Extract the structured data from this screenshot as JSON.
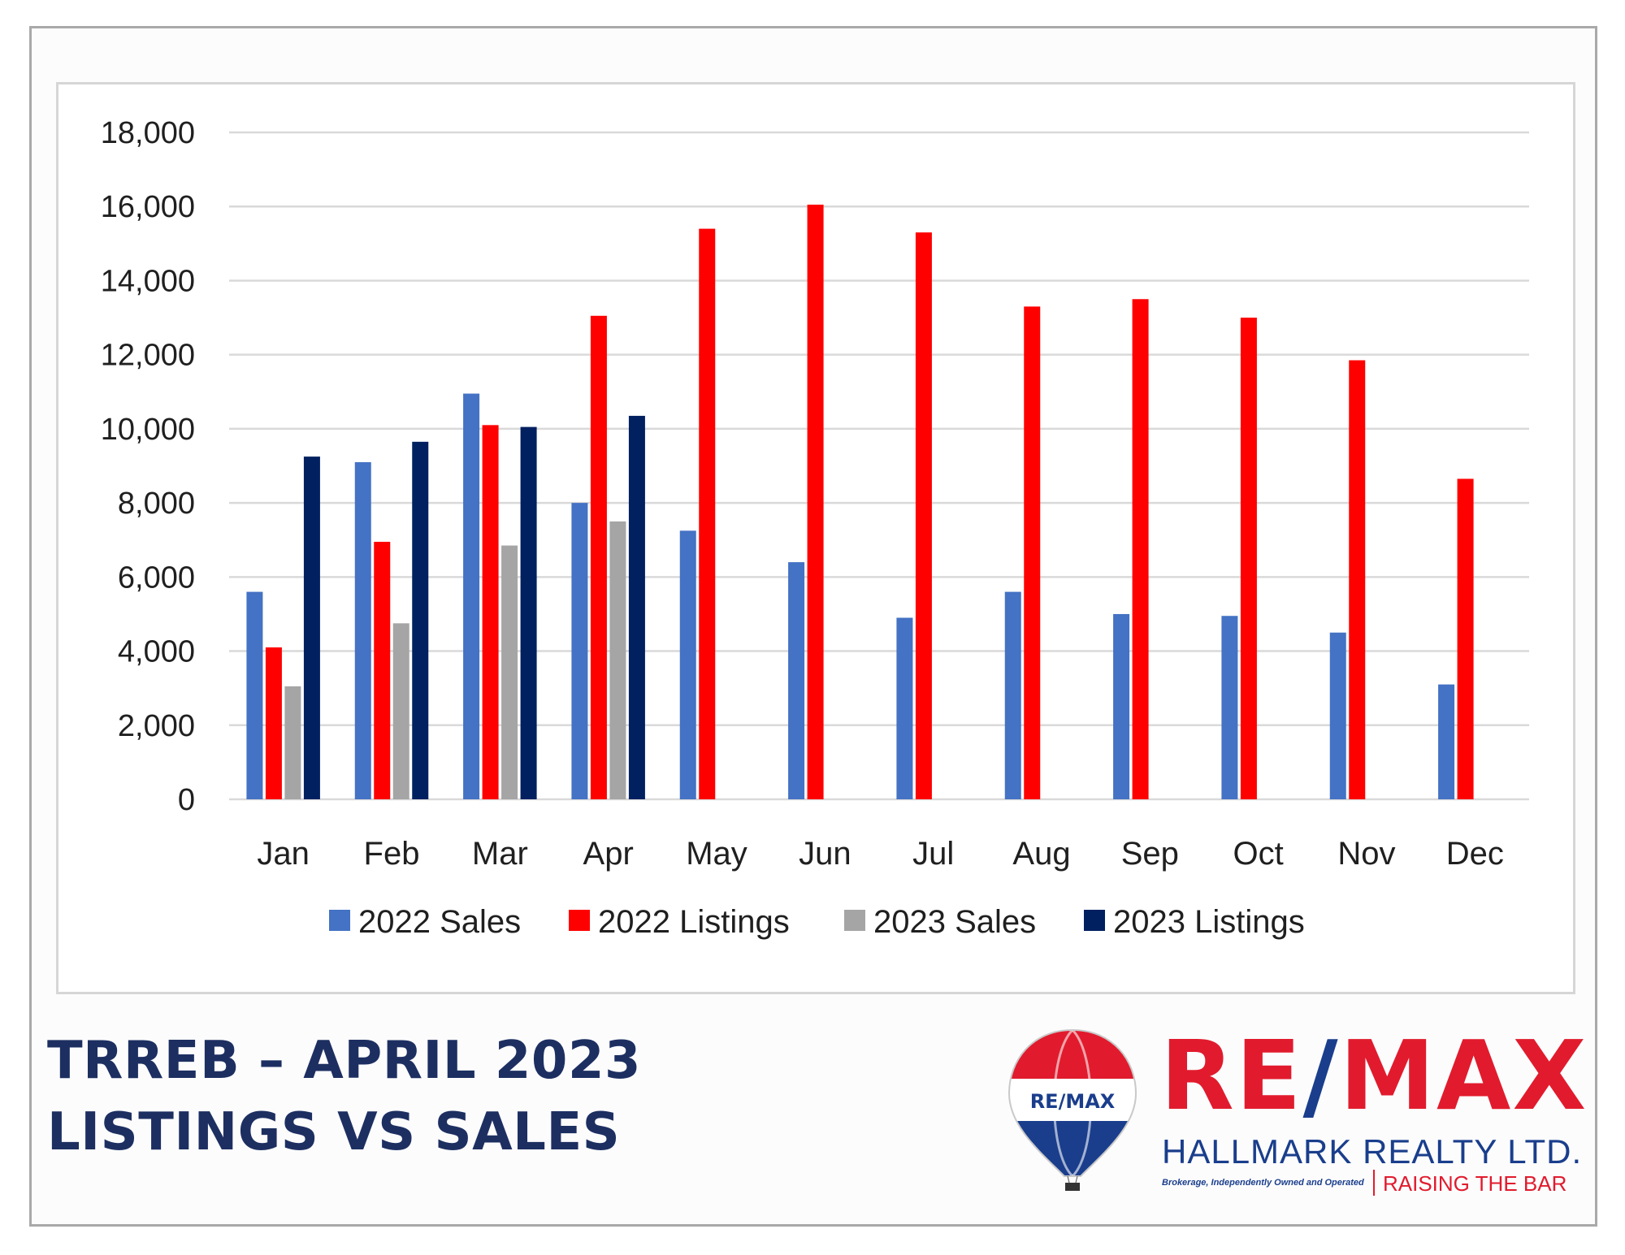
{
  "chart_data": {
    "type": "bar",
    "categories": [
      "Jan",
      "Feb",
      "Mar",
      "Apr",
      "May",
      "Jun",
      "Jul",
      "Aug",
      "Sep",
      "Oct",
      "Nov",
      "Dec"
    ],
    "series": [
      {
        "name": "2022 Sales",
        "color": "#4472c4",
        "values": [
          5600,
          9100,
          10950,
          8000,
          7250,
          6400,
          4900,
          5600,
          5000,
          4950,
          4500,
          3100
        ]
      },
      {
        "name": "2022 Listings",
        "color": "#ff0000",
        "values": [
          4100,
          6950,
          10100,
          13050,
          15400,
          16050,
          15300,
          13300,
          13500,
          13000,
          11850,
          8650
        ]
      },
      {
        "name": "2023 Sales",
        "color": "#a5a5a5",
        "values": [
          3050,
          4750,
          6850,
          7500,
          null,
          null,
          null,
          null,
          null,
          null,
          null,
          null
        ]
      },
      {
        "name": "2023 Listings",
        "color": "#002060",
        "values": [
          9250,
          9650,
          10050,
          10350,
          null,
          null,
          null,
          null,
          null,
          null,
          null,
          null
        ]
      }
    ],
    "ylim": [
      0,
      18000
    ],
    "yticks": [
      0,
      2000,
      4000,
      6000,
      8000,
      10000,
      12000,
      14000,
      16000,
      18000
    ],
    "ytick_labels": [
      "0",
      "2,000",
      "4,000",
      "6,000",
      "8,000",
      "10,000",
      "12,000",
      "14,000",
      "16,000",
      "18,000"
    ],
    "grid": true,
    "legend_position": "bottom"
  },
  "caption": {
    "line1": "TRREB – APRIL 2023",
    "line2": "LISTINGS VS SALES"
  },
  "logo": {
    "balloon_text": "RE/MAX",
    "word_left": "RE",
    "word_slash": "/",
    "word_right": "MAX",
    "company": "HALLMARK REALTY LTD.",
    "disclaimer": "Brokerage, Independently Owned and Operated",
    "slogan": "RAISING THE BAR",
    "colors": {
      "red": "#e11b2d",
      "blue": "#1a3e8c"
    }
  }
}
